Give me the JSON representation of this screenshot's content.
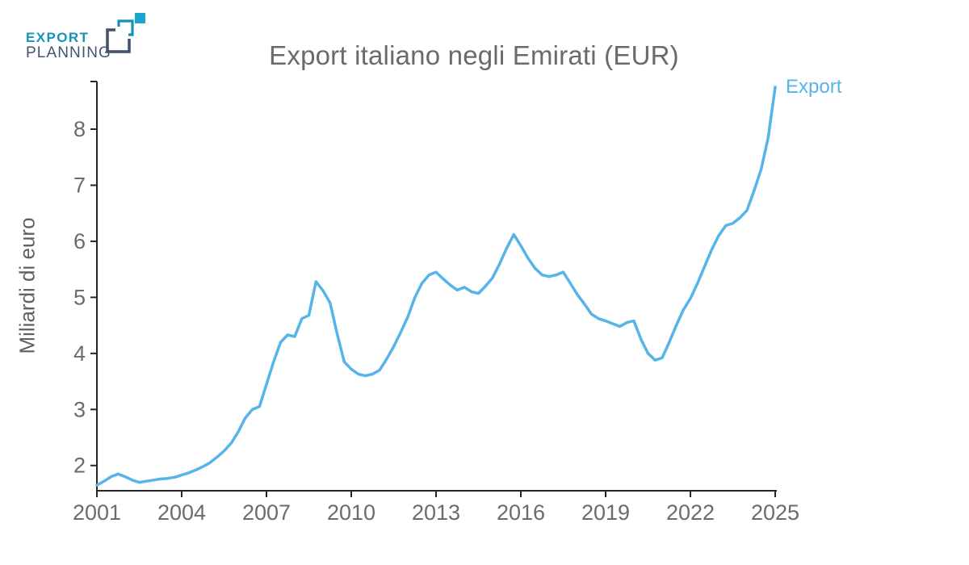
{
  "brand": {
    "name_top": "EXPORT",
    "name_bottom": "PLANNING",
    "teal": "#1493ba",
    "teal_bright": "#1ba6cc",
    "slate": "#44546a"
  },
  "chart_data": {
    "type": "line",
    "title": "Export italiano negli Emirati (EUR)",
    "xlabel": "",
    "ylabel": "Miliardi di euro",
    "grid": false,
    "xlim": [
      2001,
      2025
    ],
    "ylim": [
      1.55,
      8.85
    ],
    "x_ticks": [
      "2001",
      "2004",
      "2007",
      "2010",
      "2013",
      "2016",
      "2019",
      "2022",
      "2025"
    ],
    "y_ticks": [
      "2",
      "3",
      "4",
      "5",
      "6",
      "7",
      "8"
    ],
    "legend": {
      "label": "Export",
      "position": "line-end"
    },
    "axis_color": "#262626",
    "tick_label_color": "#6b6b6b",
    "title_color": "#6a6a6a",
    "series": [
      {
        "name": "Export",
        "color": "#56b4e9",
        "unit": "miliardi di euro",
        "x_start": 2001,
        "x_step": 0.25,
        "values": [
          1.65,
          1.72,
          1.8,
          1.85,
          1.8,
          1.74,
          1.7,
          1.72,
          1.74,
          1.76,
          1.77,
          1.79,
          1.83,
          1.87,
          1.92,
          1.98,
          2.05,
          2.15,
          2.26,
          2.4,
          2.6,
          2.85,
          3.0,
          3.05,
          3.45,
          3.85,
          4.2,
          4.33,
          4.3,
          4.62,
          4.68,
          5.28,
          5.12,
          4.9,
          4.35,
          3.85,
          3.72,
          3.63,
          3.6,
          3.63,
          3.7,
          3.9,
          4.12,
          4.38,
          4.65,
          5.0,
          5.25,
          5.4,
          5.45,
          5.33,
          5.22,
          5.13,
          5.18,
          5.1,
          5.07,
          5.2,
          5.35,
          5.6,
          5.88,
          6.12,
          5.92,
          5.7,
          5.52,
          5.4,
          5.37,
          5.4,
          5.45,
          5.25,
          5.05,
          4.88,
          4.7,
          4.62,
          4.58,
          4.53,
          4.48,
          4.55,
          4.58,
          4.25,
          4.0,
          3.88,
          3.92,
          4.2,
          4.5,
          4.78,
          4.98,
          5.25,
          5.55,
          5.85,
          6.1,
          6.28,
          6.32,
          6.42,
          6.55,
          6.9,
          7.28,
          7.85,
          8.75
        ]
      }
    ]
  }
}
